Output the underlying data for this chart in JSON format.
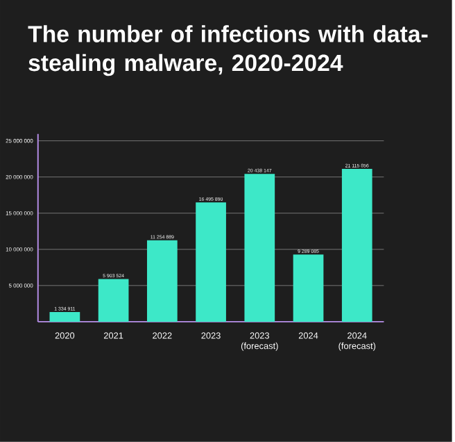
{
  "chart_data": {
    "type": "bar",
    "title": "The number of infections with data-stealing malware, 2020-2024",
    "categories": [
      "2020",
      "2021",
      "2022",
      "2023",
      "2023 (forecast)",
      "2024",
      "2024 (forecast)"
    ],
    "values": [
      1334911,
      5903524,
      11254889,
      16495890,
      20438147,
      9289085,
      21115856
    ],
    "value_labels": [
      "1 334 911",
      "5 903 524",
      "11 254 889",
      "16 495 890",
      "20 438 147",
      "9 289 085",
      "21 115 856"
    ],
    "color": "#3de8c8",
    "ylim": [
      0,
      25000000
    ],
    "yticks": [
      {
        "value": 0,
        "label": null
      },
      {
        "value": 5000000,
        "label": "5 000 000"
      },
      {
        "value": 10000000,
        "label": "10 000 000"
      },
      {
        "value": 15000000,
        "label": "15 000 000"
      },
      {
        "value": 20000000,
        "label": "20 000 000"
      },
      {
        "value": 25000000,
        "label": "25 000 000"
      }
    ],
    "grid": "y"
  }
}
